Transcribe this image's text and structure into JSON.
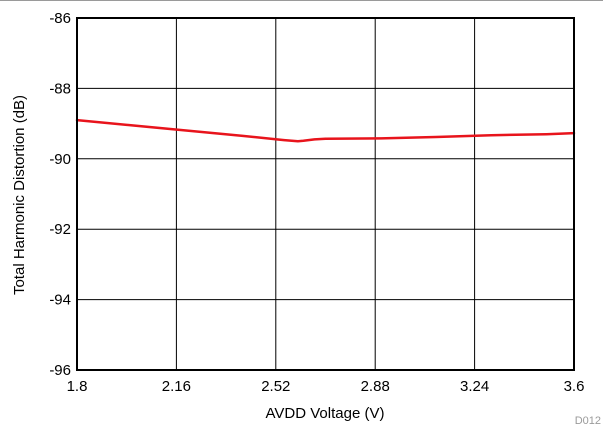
{
  "chart_data": {
    "type": "line",
    "xlabel": "AVDD Voltage (V)",
    "ylabel": "Total Harmonic Distortion (dB)",
    "xlim": [
      1.8,
      3.6
    ],
    "ylim": [
      -96,
      -86
    ],
    "xticks": [
      1.8,
      2.16,
      2.52,
      2.88,
      3.24,
      3.6
    ],
    "xtick_labels": [
      "1.8",
      "2.16",
      "2.52",
      "2.88",
      "3.24",
      "3.6"
    ],
    "yticks": [
      -86,
      -88,
      -90,
      -92,
      -94,
      -96
    ],
    "ytick_labels": [
      "-86",
      "-88",
      "-90",
      "-92",
      "-94",
      "-96"
    ],
    "grid": true,
    "series": [
      {
        "color": "#e8141c",
        "x": [
          1.8,
          2.0,
          2.2,
          2.4,
          2.55,
          2.6,
          2.62,
          2.66,
          2.7,
          2.9,
          3.1,
          3.3,
          3.5,
          3.6
        ],
        "y": [
          -88.9,
          -89.05,
          -89.2,
          -89.35,
          -89.47,
          -89.5,
          -89.49,
          -89.45,
          -89.43,
          -89.42,
          -89.38,
          -89.33,
          -89.3,
          -89.27
        ]
      }
    ],
    "footnote": "D012"
  }
}
